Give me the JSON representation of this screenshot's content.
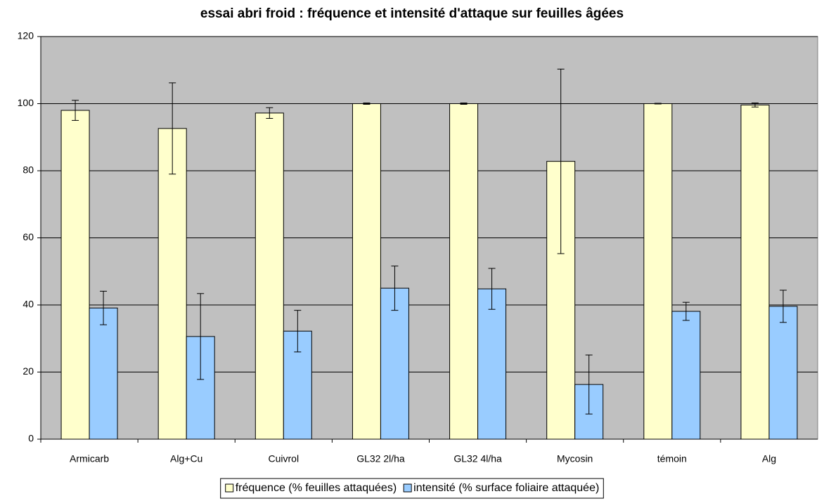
{
  "chart_data": {
    "type": "bar",
    "title": "essai abri froid : fréquence et intensité d'attaque sur feuilles âgées",
    "categories": [
      "Armicarb",
      "Alg+Cu",
      "Cuivrol",
      "GL32 2l/ha",
      "GL32 4l/ha",
      "Mycosin",
      "témoin",
      "Alg"
    ],
    "series": [
      {
        "name": "fréquence (% feuilles attaquées)",
        "color": "#ffffcc",
        "values": [
          98.0,
          92.6,
          97.2,
          100,
          100,
          82.8,
          100,
          99.6
        ],
        "errors": [
          3.0,
          13.6,
          1.6,
          0.2,
          0.2,
          27.5,
          0.1,
          0.6
        ]
      },
      {
        "name": "intensité (% surface foliaire attaquée)",
        "color": "#99ccff",
        "values": [
          39.1,
          30.6,
          32.2,
          45.0,
          44.8,
          16.3,
          38.1,
          39.6
        ],
        "errors": [
          5.0,
          12.8,
          6.2,
          6.6,
          6.1,
          8.8,
          2.7,
          4.8
        ]
      }
    ],
    "ylim": [
      0,
      120
    ],
    "yticks": [
      0,
      20,
      40,
      60,
      80,
      100,
      120
    ],
    "grid": true,
    "legend": "bottom"
  }
}
